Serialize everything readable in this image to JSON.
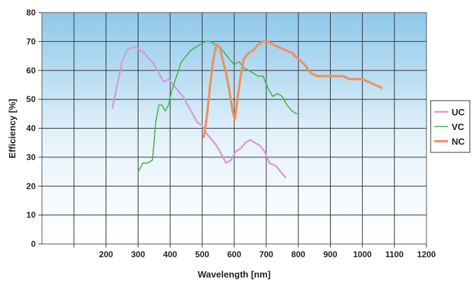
{
  "chart_data": {
    "type": "line",
    "xlabel": "Wavelength [nm]",
    "ylabel": "Efficiency [%]",
    "xlim": [
      0,
      1200
    ],
    "ylim": [
      0,
      80
    ],
    "x_ticks": [
      200,
      300,
      400,
      500,
      600,
      700,
      800,
      900,
      1000,
      1100,
      1200
    ],
    "y_ticks": [
      0,
      10,
      20,
      30,
      40,
      50,
      60,
      70,
      80
    ],
    "grid": true,
    "legend_position": "right",
    "plot_background": "gradient light-blue (top) to white (bottom)",
    "series": [
      {
        "name": "UC",
        "color": "#d59ad9",
        "x": [
          220,
          235,
          250,
          265,
          280,
          295,
          305,
          320,
          335,
          350,
          365,
          380,
          395,
          410,
          425,
          440,
          455,
          470,
          485,
          500,
          515,
          530,
          545,
          560,
          575,
          590,
          605,
          620,
          635,
          650,
          665,
          680,
          695,
          710,
          730,
          745,
          760
        ],
        "y": [
          47,
          55,
          63,
          67,
          68,
          68,
          67,
          66,
          64,
          62,
          59,
          56,
          57,
          55,
          53,
          51,
          48,
          45,
          42,
          41,
          38,
          36,
          34,
          31,
          28,
          29,
          32,
          33,
          35,
          36,
          35,
          34,
          32,
          28,
          27,
          25,
          23
        ]
      },
      {
        "name": "VC",
        "color": "#3ab43a",
        "x": [
          300,
          315,
          330,
          345,
          355,
          365,
          375,
          385,
          395,
          405,
          420,
          435,
          450,
          465,
          480,
          495,
          510,
          525,
          540,
          555,
          570,
          585,
          600,
          615,
          630,
          645,
          660,
          675,
          690,
          705,
          720,
          735,
          750,
          765,
          780,
          795
        ],
        "y": [
          25,
          28,
          28,
          29,
          42,
          48,
          48,
          46,
          48,
          53,
          58,
          63,
          65,
          67,
          68,
          69,
          70,
          70,
          69,
          68,
          66,
          64,
          62,
          63,
          61,
          60,
          59,
          58,
          58,
          54,
          51,
          52,
          51,
          48,
          46,
          45
        ]
      },
      {
        "name": "NC",
        "color": "#f0905a",
        "x": [
          505,
          515,
          525,
          535,
          545,
          555,
          565,
          575,
          585,
          595,
          602,
          610,
          620,
          630,
          645,
          660,
          675,
          690,
          705,
          720,
          740,
          760,
          780,
          800,
          820,
          840,
          860,
          880,
          900,
          920,
          940,
          960,
          980,
          1000,
          1020,
          1040,
          1060
        ],
        "y": [
          37,
          44,
          55,
          64,
          69,
          68,
          63,
          59,
          53,
          46,
          43,
          50,
          58,
          64,
          66,
          67,
          69,
          70,
          70,
          69,
          68,
          67,
          66,
          64,
          62,
          59,
          58,
          58,
          58,
          58,
          58,
          57,
          57,
          57,
          56,
          55,
          54
        ]
      }
    ]
  }
}
